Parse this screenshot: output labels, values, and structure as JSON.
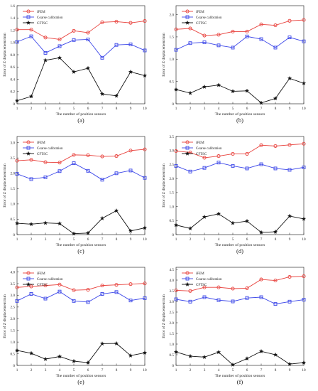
{
  "chart_data": [
    {
      "type": "line",
      "caption": "(a)",
      "x": [
        1,
        2,
        3,
        4,
        5,
        6,
        7,
        8,
        9,
        10
      ],
      "xlabel": "The number of position sensors",
      "ylabel": "Error of Z displacement/mm",
      "xlim": [
        1,
        10
      ],
      "ylim": [
        0,
        1.6
      ],
      "yticks": [
        0,
        0.2,
        0.4,
        0.6,
        0.8,
        1.0,
        1.2,
        1.4,
        1.6
      ],
      "grid": false,
      "legend": "top-left",
      "series": [
        {
          "name": "iFEM",
          "color": "#e8413c",
          "marker": "circle",
          "values": [
            1.21,
            1.21,
            1.08,
            1.05,
            1.19,
            1.16,
            1.33,
            1.34,
            1.32,
            1.35
          ]
        },
        {
          "name": "Coarse calibration",
          "color": "#3b46e8",
          "marker": "square",
          "values": [
            1.01,
            1.1,
            0.83,
            0.94,
            1.04,
            1.05,
            0.75,
            0.96,
            0.97,
            0.87
          ]
        },
        {
          "name": "CFTSC",
          "color": "#111111",
          "marker": "star",
          "values": [
            0.05,
            0.12,
            0.71,
            0.75,
            0.52,
            0.58,
            0.16,
            0.13,
            0.52,
            0.46
          ]
        }
      ]
    },
    {
      "type": "line",
      "caption": "(b)",
      "x": [
        1,
        2,
        3,
        4,
        5,
        6,
        7,
        8,
        9,
        10
      ],
      "xlabel": "The number of position sensors",
      "ylabel": "Error of Z displacement/mm",
      "xlim": [
        1,
        10
      ],
      "ylim": [
        0,
        2.2
      ],
      "yticks": [
        0,
        0.5,
        1.0,
        1.5,
        2.0
      ],
      "grid": false,
      "legend": "top-left",
      "series": [
        {
          "name": "iFEM",
          "color": "#e8413c",
          "marker": "circle",
          "values": [
            1.67,
            1.69,
            1.53,
            1.55,
            1.62,
            1.62,
            1.78,
            1.76,
            1.86,
            1.88
          ]
        },
        {
          "name": "Coarse calibration",
          "color": "#3b46e8",
          "marker": "square",
          "values": [
            1.21,
            1.36,
            1.38,
            1.31,
            1.26,
            1.51,
            1.45,
            1.26,
            1.49,
            1.4
          ]
        },
        {
          "name": "CFTSC",
          "color": "#111111",
          "marker": "star",
          "values": [
            0.32,
            0.24,
            0.38,
            0.42,
            0.28,
            0.29,
            0.02,
            0.12,
            0.57,
            0.46
          ]
        }
      ]
    },
    {
      "type": "line",
      "caption": "(c)",
      "x": [
        1,
        2,
        3,
        4,
        5,
        6,
        7,
        8,
        9,
        10
      ],
      "xlabel": "The number of position sensors",
      "ylabel": "Error of Z displacement/mm",
      "xlim": [
        1,
        10
      ],
      "ylim": [
        0,
        3.2
      ],
      "yticks": [
        0,
        0.5,
        1.0,
        1.5,
        2.0,
        2.5,
        3.0
      ],
      "grid": false,
      "legend": "top-left",
      "series": [
        {
          "name": "iFEM",
          "color": "#e8413c",
          "marker": "circle",
          "values": [
            2.41,
            2.44,
            2.36,
            2.35,
            2.6,
            2.59,
            2.55,
            2.56,
            2.74,
            2.78
          ]
        },
        {
          "name": "Coarse calibration",
          "color": "#3b46e8",
          "marker": "square",
          "values": [
            1.98,
            1.81,
            1.87,
            2.07,
            2.33,
            2.08,
            1.79,
            2.0,
            2.09,
            1.85
          ]
        },
        {
          "name": "CFTSC",
          "color": "#111111",
          "marker": "star",
          "values": [
            0.37,
            0.34,
            0.38,
            0.36,
            0.03,
            0.05,
            0.53,
            0.78,
            0.12,
            0.22
          ]
        }
      ]
    },
    {
      "type": "line",
      "caption": "(d)",
      "x": [
        1,
        2,
        3,
        4,
        5,
        6,
        7,
        8,
        9,
        10
      ],
      "xlabel": "The number of position sensors",
      "ylabel": "Error of Z displacement/mm",
      "xlim": [
        1,
        10
      ],
      "ylim": [
        0,
        3.5
      ],
      "yticks": [
        0,
        0.5,
        1.0,
        1.5,
        2.0,
        2.5,
        3.0,
        3.5
      ],
      "grid": false,
      "legend": "top-left",
      "series": [
        {
          "name": "iFEM",
          "color": "#e8413c",
          "marker": "circle",
          "values": [
            2.98,
            2.93,
            2.74,
            2.8,
            2.88,
            2.88,
            3.19,
            3.16,
            3.2,
            3.24
          ]
        },
        {
          "name": "Coarse calibration",
          "color": "#3b46e8",
          "marker": "square",
          "values": [
            2.45,
            2.25,
            2.38,
            2.57,
            2.45,
            2.36,
            2.51,
            2.36,
            2.31,
            2.4
          ]
        },
        {
          "name": "CFTSC",
          "color": "#111111",
          "marker": "star",
          "values": [
            0.34,
            0.22,
            0.63,
            0.74,
            0.41,
            0.48,
            0.08,
            0.1,
            0.66,
            0.56
          ]
        }
      ]
    },
    {
      "type": "line",
      "caption": "(e)",
      "x": [
        1,
        2,
        3,
        4,
        5,
        6,
        7,
        8,
        9,
        10
      ],
      "xlabel": "The number of position sensors",
      "ylabel": "Error of Z displacement/mm",
      "xlim": [
        1,
        10
      ],
      "ylim": [
        0,
        4.2
      ],
      "yticks": [
        0,
        0.5,
        1.0,
        1.5,
        2.0,
        2.5,
        3.0,
        3.5,
        4.0
      ],
      "grid": false,
      "legend": "top-left",
      "series": [
        {
          "name": "iFEM",
          "color": "#e8413c",
          "marker": "circle",
          "values": [
            3.34,
            3.38,
            3.42,
            3.46,
            3.22,
            3.24,
            3.42,
            3.45,
            3.48,
            3.51
          ]
        },
        {
          "name": "Coarse calibration",
          "color": "#3b46e8",
          "marker": "square",
          "values": [
            2.76,
            3.06,
            2.86,
            3.16,
            2.76,
            2.71,
            3.06,
            3.14,
            2.78,
            2.88
          ]
        },
        {
          "name": "CFTSC",
          "color": "#111111",
          "marker": "star",
          "values": [
            0.64,
            0.52,
            0.27,
            0.38,
            0.18,
            0.12,
            0.93,
            0.94,
            0.42,
            0.54
          ]
        }
      ]
    },
    {
      "type": "line",
      "caption": "(f)",
      "x": [
        1,
        2,
        3,
        4,
        5,
        6,
        7,
        8,
        9,
        10
      ],
      "xlabel": "The number of position sensors",
      "ylabel": "Error of Z displacement/mm",
      "xlim": [
        1,
        10
      ],
      "ylim": [
        0,
        4.6
      ],
      "yticks": [
        0,
        0.5,
        1.0,
        1.5,
        2.0,
        2.5,
        3.0,
        3.5,
        4.0,
        4.5
      ],
      "grid": false,
      "legend": "top-left",
      "series": [
        {
          "name": "iFEM",
          "color": "#e8413c",
          "marker": "circle",
          "values": [
            3.52,
            3.49,
            3.66,
            3.66,
            3.6,
            3.62,
            4.03,
            3.98,
            4.15,
            4.18
          ]
        },
        {
          "name": "Coarse calibration",
          "color": "#3b46e8",
          "marker": "square",
          "values": [
            3.1,
            2.99,
            3.2,
            3.06,
            3.0,
            3.16,
            3.2,
            2.88,
            2.99,
            3.08
          ]
        },
        {
          "name": "CFTSC",
          "color": "#111111",
          "marker": "star",
          "values": [
            0.63,
            0.43,
            0.39,
            0.62,
            0.03,
            0.32,
            0.66,
            0.5,
            0.06,
            0.13
          ]
        }
      ]
    }
  ]
}
